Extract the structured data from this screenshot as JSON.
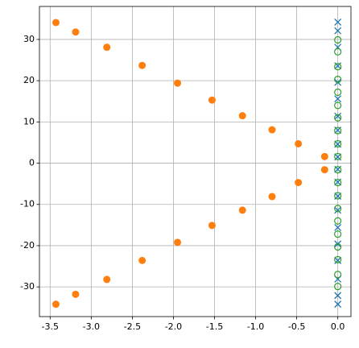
{
  "chart_data": {
    "type": "scatter",
    "xlim": [
      -3.63,
      0.16
    ],
    "ylim": [
      -37.2,
      38.0
    ],
    "xticks": [
      -3.5,
      {
        "value": -3,
        "label": "-3.0"
      },
      -2.5,
      {
        "value": -2,
        "label": "-2.0"
      },
      -1.5,
      {
        "value": -1,
        "label": "-1.0"
      },
      -0.5,
      {
        "value": 0,
        "label": "0.0"
      }
    ],
    "yticks": [
      -30,
      -20,
      -10,
      0,
      10,
      20,
      30
    ],
    "grid": true,
    "series": [
      {
        "color": "#1f77b4",
        "marker": "x",
        "x": [
          0,
          0,
          0,
          0,
          0,
          0,
          0,
          0,
          0,
          0,
          0,
          0,
          0,
          0,
          0,
          0,
          0,
          0,
          0,
          0
        ],
        "values": [
          34.2,
          32.1,
          28.1,
          23.6,
          19.6,
          15.6,
          11.4,
          8.0,
          4.6,
          1.5,
          -1.5,
          -4.6,
          -8.0,
          -11.4,
          -15.6,
          -19.6,
          -23.6,
          -28.1,
          -32.1,
          -34.2
        ]
      },
      {
        "color": "#2ca02c",
        "marker": "open-circle",
        "x": [
          0,
          0,
          0,
          0,
          0,
          0,
          0,
          0,
          0,
          0,
          0,
          0,
          0,
          0,
          0,
          0,
          0,
          0,
          0,
          0
        ],
        "values": [
          29.9,
          27.0,
          23.4,
          20.3,
          17.2,
          14.0,
          11.0,
          7.9,
          4.7,
          1.6,
          -1.6,
          -4.7,
          -7.9,
          -11.0,
          -14.0,
          -17.2,
          -20.3,
          -23.4,
          -27.0,
          -29.9
        ]
      },
      {
        "color": "#ff7f0e",
        "marker": "circle",
        "x": [
          -3.43,
          -3.19,
          -2.81,
          -2.38,
          -1.95,
          -1.53,
          -1.16,
          -0.8,
          -0.48,
          -0.16,
          -0.16,
          -0.48,
          -0.8,
          -1.16,
          -1.53,
          -1.95,
          -2.38,
          -2.81,
          -3.19,
          -3.43
        ],
        "values": [
          34.1,
          31.8,
          28.1,
          23.7,
          19.4,
          15.3,
          11.5,
          8.1,
          4.7,
          1.6,
          -1.6,
          -4.7,
          -8.1,
          -11.4,
          -15.1,
          -19.2,
          -23.6,
          -28.2,
          -31.8,
          -34.2
        ]
      }
    ]
  }
}
